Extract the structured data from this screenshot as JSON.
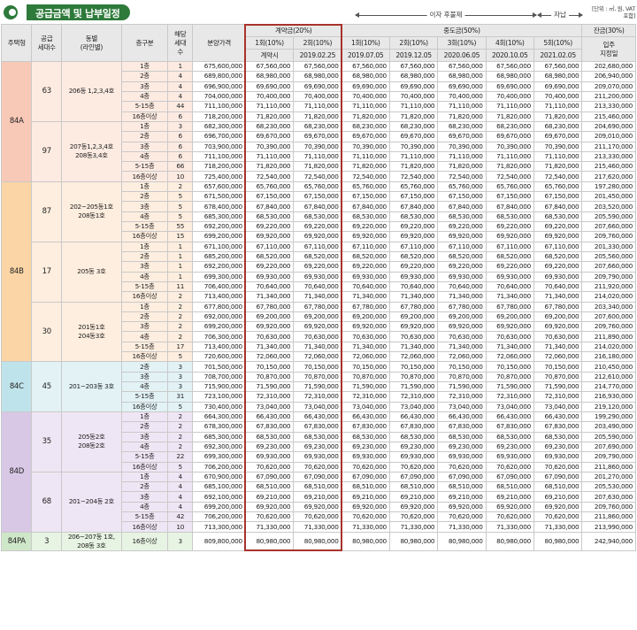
{
  "title": "공급금액 및 납부일정",
  "unit_note": "[단위 : ㎡, 원, VAT포함]",
  "arrow_interest": "이자 후불제",
  "arrow_self": "자납",
  "headers": {
    "type": "주택형",
    "supply": "공급\n세대수",
    "building": "동별\n(라인별)",
    "floor": "층구분",
    "units": "해당\n세대\n수",
    "price": "분양가격",
    "deposit": "계약금(20%)",
    "middle": "중도금(50%)",
    "balance": "잔금(30%)",
    "dep1": "1회(10%)",
    "dep2": "2회(10%)",
    "mid1": "1회(10%)",
    "mid2": "2회(10%)",
    "mid3": "3회(10%)",
    "mid4": "4회(10%)",
    "mid5": "5회(10%)",
    "balance_date": "입주\n지정일",
    "dep1_date": "계약시",
    "dep2_date": "2019.02.25",
    "mid1_date": "2019.07.05",
    "mid2_date": "2019.12.05",
    "mid3_date": "2020.06.05",
    "mid4_date": "2020.10.05",
    "mid5_date": "2021.02.05"
  },
  "types": [
    {
      "name": "84A",
      "color": "p84A",
      "groups": [
        {
          "supply": "63",
          "building": "206동 1,2,3,4호",
          "rows": [
            [
              "1층",
              "1",
              "675,600,000",
              "67,560,000",
              "67,560,000",
              "67,560,000",
              "67,560,000",
              "67,560,000",
              "67,560,000",
              "67,560,000",
              "202,680,000"
            ],
            [
              "2층",
              "4",
              "689,800,000",
              "68,980,000",
              "68,980,000",
              "68,980,000",
              "68,980,000",
              "68,980,000",
              "68,980,000",
              "68,980,000",
              "206,940,000"
            ],
            [
              "3층",
              "4",
              "696,900,000",
              "69,690,000",
              "69,690,000",
              "69,690,000",
              "69,690,000",
              "69,690,000",
              "69,690,000",
              "69,690,000",
              "209,070,000"
            ],
            [
              "4층",
              "4",
              "704,000,000",
              "70,400,000",
              "70,400,000",
              "70,400,000",
              "70,400,000",
              "70,400,000",
              "70,400,000",
              "70,400,000",
              "211,200,000"
            ],
            [
              "5-15층",
              "44",
              "711,100,000",
              "71,110,000",
              "71,110,000",
              "71,110,000",
              "71,110,000",
              "71,110,000",
              "71,110,000",
              "71,110,000",
              "213,330,000"
            ],
            [
              "16층이상",
              "6",
              "718,200,000",
              "71,820,000",
              "71,820,000",
              "71,820,000",
              "71,820,000",
              "71,820,000",
              "71,820,000",
              "71,820,000",
              "215,460,000"
            ]
          ]
        },
        {
          "supply": "97",
          "building": "207동1,2,3,4호\n208동3,4호",
          "rows": [
            [
              "1층",
              "3",
              "682,300,000",
              "68,230,000",
              "68,230,000",
              "68,230,000",
              "68,230,000",
              "68,230,000",
              "68,230,000",
              "68,230,000",
              "204,690,000"
            ],
            [
              "2층",
              "6",
              "696,700,000",
              "69,670,000",
              "69,670,000",
              "69,670,000",
              "69,670,000",
              "69,670,000",
              "69,670,000",
              "69,670,000",
              "209,010,000"
            ],
            [
              "3층",
              "6",
              "703,900,000",
              "70,390,000",
              "70,390,000",
              "70,390,000",
              "70,390,000",
              "70,390,000",
              "70,390,000",
              "70,390,000",
              "211,170,000"
            ],
            [
              "4층",
              "6",
              "711,100,000",
              "71,110,000",
              "71,110,000",
              "71,110,000",
              "71,110,000",
              "71,110,000",
              "71,110,000",
              "71,110,000",
              "213,330,000"
            ],
            [
              "5-15층",
              "66",
              "718,200,000",
              "71,820,000",
              "71,820,000",
              "71,820,000",
              "71,820,000",
              "71,820,000",
              "71,820,000",
              "71,820,000",
              "215,460,000"
            ],
            [
              "16층이상",
              "10",
              "725,400,000",
              "72,540,000",
              "72,540,000",
              "72,540,000",
              "72,540,000",
              "72,540,000",
              "72,540,000",
              "72,540,000",
              "217,620,000"
            ]
          ]
        }
      ]
    },
    {
      "name": "84B",
      "color": "p84B",
      "groups": [
        {
          "supply": "87",
          "building": "202~205동1호\n208동1호",
          "rows": [
            [
              "1층",
              "2",
              "657,600,000",
              "65,760,000",
              "65,760,000",
              "65,760,000",
              "65,760,000",
              "65,760,000",
              "65,760,000",
              "65,760,000",
              "197,280,000"
            ],
            [
              "2층",
              "5",
              "671,500,000",
              "67,150,000",
              "67,150,000",
              "67,150,000",
              "67,150,000",
              "67,150,000",
              "67,150,000",
              "67,150,000",
              "201,450,000"
            ],
            [
              "3층",
              "5",
              "678,400,000",
              "67,840,000",
              "67,840,000",
              "67,840,000",
              "67,840,000",
              "67,840,000",
              "67,840,000",
              "67,840,000",
              "203,520,000"
            ],
            [
              "4층",
              "5",
              "685,300,000",
              "68,530,000",
              "68,530,000",
              "68,530,000",
              "68,530,000",
              "68,530,000",
              "68,530,000",
              "68,530,000",
              "205,590,000"
            ],
            [
              "5-15층",
              "55",
              "692,200,000",
              "69,220,000",
              "69,220,000",
              "69,220,000",
              "69,220,000",
              "69,220,000",
              "69,220,000",
              "69,220,000",
              "207,660,000"
            ],
            [
              "16층이상",
              "15",
              "699,200,000",
              "69,920,000",
              "69,920,000",
              "69,920,000",
              "69,920,000",
              "69,920,000",
              "69,920,000",
              "69,920,000",
              "209,760,000"
            ]
          ]
        },
        {
          "supply": "17",
          "building": "205동 3호",
          "rows": [
            [
              "1층",
              "1",
              "671,100,000",
              "67,110,000",
              "67,110,000",
              "67,110,000",
              "67,110,000",
              "67,110,000",
              "67,110,000",
              "67,110,000",
              "201,330,000"
            ],
            [
              "2층",
              "1",
              "685,200,000",
              "68,520,000",
              "68,520,000",
              "68,520,000",
              "68,520,000",
              "68,520,000",
              "68,520,000",
              "68,520,000",
              "205,560,000"
            ],
            [
              "3층",
              "1",
              "692,200,000",
              "69,220,000",
              "69,220,000",
              "69,220,000",
              "69,220,000",
              "69,220,000",
              "69,220,000",
              "69,220,000",
              "207,660,000"
            ],
            [
              "4층",
              "1",
              "699,300,000",
              "69,930,000",
              "69,930,000",
              "69,930,000",
              "69,930,000",
              "69,930,000",
              "69,930,000",
              "69,930,000",
              "209,790,000"
            ],
            [
              "5-15층",
              "11",
              "706,400,000",
              "70,640,000",
              "70,640,000",
              "70,640,000",
              "70,640,000",
              "70,640,000",
              "70,640,000",
              "70,640,000",
              "211,920,000"
            ],
            [
              "16층이상",
              "2",
              "713,400,000",
              "71,340,000",
              "71,340,000",
              "71,340,000",
              "71,340,000",
              "71,340,000",
              "71,340,000",
              "71,340,000",
              "214,020,000"
            ]
          ]
        },
        {
          "supply": "30",
          "building": "201동1호\n204동3호",
          "rows": [
            [
              "1층",
              "2",
              "677,800,000",
              "67,780,000",
              "67,780,000",
              "67,780,000",
              "67,780,000",
              "67,780,000",
              "67,780,000",
              "67,780,000",
              "203,340,000"
            ],
            [
              "2층",
              "2",
              "692,000,000",
              "69,200,000",
              "69,200,000",
              "69,200,000",
              "69,200,000",
              "69,200,000",
              "69,200,000",
              "69,200,000",
              "207,600,000"
            ],
            [
              "3층",
              "2",
              "699,200,000",
              "69,920,000",
              "69,920,000",
              "69,920,000",
              "69,920,000",
              "69,920,000",
              "69,920,000",
              "69,920,000",
              "209,760,000"
            ],
            [
              "4층",
              "2",
              "706,300,000",
              "70,630,000",
              "70,630,000",
              "70,630,000",
              "70,630,000",
              "70,630,000",
              "70,630,000",
              "70,630,000",
              "211,890,000"
            ],
            [
              "5-15층",
              "17",
              "713,400,000",
              "71,340,000",
              "71,340,000",
              "71,340,000",
              "71,340,000",
              "71,340,000",
              "71,340,000",
              "71,340,000",
              "214,020,000"
            ],
            [
              "16층이상",
              "5",
              "720,600,000",
              "72,060,000",
              "72,060,000",
              "72,060,000",
              "72,060,000",
              "72,060,000",
              "72,060,000",
              "72,060,000",
              "216,180,000"
            ]
          ]
        }
      ]
    },
    {
      "name": "84C",
      "color": "p84C",
      "groups": [
        {
          "supply": "45",
          "building": "201~203동 3호",
          "rows": [
            [
              "2층",
              "3",
              "701,500,000",
              "70,150,000",
              "70,150,000",
              "70,150,000",
              "70,150,000",
              "70,150,000",
              "70,150,000",
              "70,150,000",
              "210,450,000"
            ],
            [
              "3층",
              "3",
              "708,700,000",
              "70,870,000",
              "70,870,000",
              "70,870,000",
              "70,870,000",
              "70,870,000",
              "70,870,000",
              "70,870,000",
              "212,610,000"
            ],
            [
              "4층",
              "3",
              "715,900,000",
              "71,590,000",
              "71,590,000",
              "71,590,000",
              "71,590,000",
              "71,590,000",
              "71,590,000",
              "71,590,000",
              "214,770,000"
            ],
            [
              "5-15층",
              "31",
              "723,100,000",
              "72,310,000",
              "72,310,000",
              "72,310,000",
              "72,310,000",
              "72,310,000",
              "72,310,000",
              "72,310,000",
              "216,930,000"
            ],
            [
              "16층이상",
              "5",
              "730,400,000",
              "73,040,000",
              "73,040,000",
              "73,040,000",
              "73,040,000",
              "73,040,000",
              "73,040,000",
              "73,040,000",
              "219,120,000"
            ]
          ]
        }
      ]
    },
    {
      "name": "84D",
      "color": "p84D",
      "groups": [
        {
          "supply": "35",
          "building": "205동2호\n208동2호",
          "rows": [
            [
              "1층",
              "2",
              "664,300,000",
              "66,430,000",
              "66,430,000",
              "66,430,000",
              "66,430,000",
              "66,430,000",
              "66,430,000",
              "66,430,000",
              "199,290,000"
            ],
            [
              "2층",
              "2",
              "678,300,000",
              "67,830,000",
              "67,830,000",
              "67,830,000",
              "67,830,000",
              "67,830,000",
              "67,830,000",
              "67,830,000",
              "203,490,000"
            ],
            [
              "3층",
              "2",
              "685,300,000",
              "68,530,000",
              "68,530,000",
              "68,530,000",
              "68,530,000",
              "68,530,000",
              "68,530,000",
              "68,530,000",
              "205,590,000"
            ],
            [
              "4층",
              "2",
              "692,300,000",
              "69,230,000",
              "69,230,000",
              "69,230,000",
              "69,230,000",
              "69,230,000",
              "69,230,000",
              "69,230,000",
              "207,690,000"
            ],
            [
              "5-15층",
              "22",
              "699,300,000",
              "69,930,000",
              "69,930,000",
              "69,930,000",
              "69,930,000",
              "69,930,000",
              "69,930,000",
              "69,930,000",
              "209,790,000"
            ],
            [
              "16층이상",
              "5",
              "706,200,000",
              "70,620,000",
              "70,620,000",
              "70,620,000",
              "70,620,000",
              "70,620,000",
              "70,620,000",
              "70,620,000",
              "211,860,000"
            ]
          ]
        },
        {
          "supply": "68",
          "building": "201~204동 2호",
          "rows": [
            [
              "1층",
              "4",
              "670,900,000",
              "67,090,000",
              "67,090,000",
              "67,090,000",
              "67,090,000",
              "67,090,000",
              "67,090,000",
              "67,090,000",
              "201,270,000"
            ],
            [
              "2층",
              "4",
              "685,100,000",
              "68,510,000",
              "68,510,000",
              "68,510,000",
              "68,510,000",
              "68,510,000",
              "68,510,000",
              "68,510,000",
              "205,530,000"
            ],
            [
              "3층",
              "4",
              "692,100,000",
              "69,210,000",
              "69,210,000",
              "69,210,000",
              "69,210,000",
              "69,210,000",
              "69,210,000",
              "69,210,000",
              "207,630,000"
            ],
            [
              "4층",
              "4",
              "699,200,000",
              "69,920,000",
              "69,920,000",
              "69,920,000",
              "69,920,000",
              "69,920,000",
              "69,920,000",
              "69,920,000",
              "209,760,000"
            ],
            [
              "5-15층",
              "42",
              "706,200,000",
              "70,620,000",
              "70,620,000",
              "70,620,000",
              "70,620,000",
              "70,620,000",
              "70,620,000",
              "70,620,000",
              "211,860,000"
            ],
            [
              "16층이상",
              "10",
              "713,300,000",
              "71,330,000",
              "71,330,000",
              "71,330,000",
              "71,330,000",
              "71,330,000",
              "71,330,000",
              "71,330,000",
              "213,990,000"
            ]
          ]
        }
      ]
    },
    {
      "name": "84PA",
      "color": "p84PA",
      "groups": [
        {
          "supply": "3",
          "building": "206~207동 1호,\n208동 3호",
          "rows": [
            [
              "16층이상",
              "3",
              "809,800,000",
              "80,980,000",
              "80,980,000",
              "80,980,000",
              "80,980,000",
              "80,980,000",
              "80,980,000",
              "80,980,000",
              "242,940,000"
            ]
          ]
        }
      ]
    }
  ]
}
